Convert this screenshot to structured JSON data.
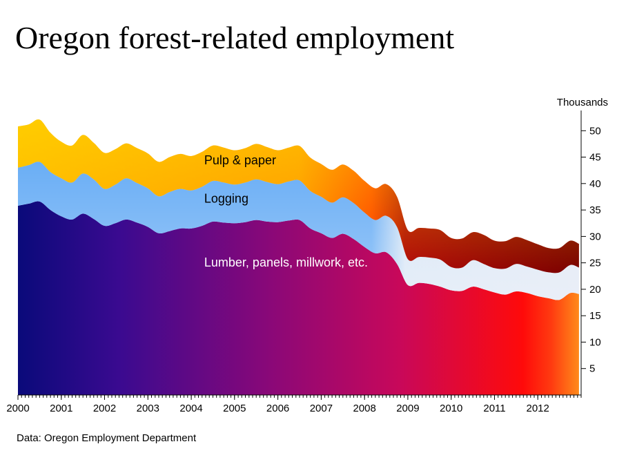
{
  "title": "Oregon forest-related employment",
  "source": "Data:  Oregon Employment Department",
  "chart_data": {
    "type": "area",
    "stacked": true,
    "ylabel": "Thousands",
    "ylim": [
      0,
      52
    ],
    "yticks": [
      5,
      10,
      15,
      20,
      25,
      30,
      35,
      40,
      45,
      50
    ],
    "xticks": [
      "2000",
      "2001",
      "2002",
      "2003",
      "2004",
      "2005",
      "2006",
      "2007",
      "2008",
      "2009",
      "2010",
      "2011",
      "2012"
    ],
    "x_start": 2000.0,
    "x_end": 2013.0,
    "grid": false,
    "y_axis_side": "right",
    "x": [
      2000.0,
      2000.25,
      2000.5,
      2000.75,
      2001.0,
      2001.25,
      2001.5,
      2001.75,
      2002.0,
      2002.25,
      2002.5,
      2002.75,
      2003.0,
      2003.25,
      2003.5,
      2003.75,
      2004.0,
      2004.25,
      2004.5,
      2004.75,
      2005.0,
      2005.25,
      2005.5,
      2005.75,
      2006.0,
      2006.25,
      2006.5,
      2006.75,
      2007.0,
      2007.25,
      2007.5,
      2007.75,
      2008.0,
      2008.25,
      2008.5,
      2008.75,
      2009.0,
      2009.25,
      2009.5,
      2009.75,
      2010.0,
      2010.25,
      2010.5,
      2010.75,
      2011.0,
      2011.25,
      2011.5,
      2011.75,
      2012.0,
      2012.25,
      2012.5,
      2012.75,
      2012.95
    ],
    "series": [
      {
        "name": "Lumber, panels, millwork, etc.",
        "values": [
          35.8,
          36.2,
          36.6,
          35.0,
          33.8,
          33.2,
          34.3,
          33.3,
          32.0,
          32.5,
          33.2,
          32.6,
          31.8,
          30.6,
          31.0,
          31.5,
          31.5,
          32.0,
          32.8,
          32.6,
          32.5,
          32.7,
          33.1,
          32.8,
          32.7,
          33.0,
          33.1,
          31.5,
          30.6,
          29.7,
          30.5,
          29.5,
          28.0,
          26.8,
          27.0,
          24.8,
          20.8,
          21.2,
          21.0,
          20.5,
          19.8,
          19.7,
          20.5,
          20.0,
          19.4,
          19.0,
          19.6,
          19.3,
          18.7,
          18.3,
          18.0,
          19.3,
          19.1
        ]
      },
      {
        "name": "Logging",
        "values": [
          7.2,
          7.3,
          7.5,
          7.2,
          7.2,
          7.0,
          7.6,
          7.5,
          7.0,
          7.3,
          7.8,
          7.5,
          7.3,
          7.0,
          7.4,
          7.5,
          7.2,
          7.4,
          7.7,
          7.6,
          7.3,
          7.5,
          7.7,
          7.5,
          7.2,
          7.4,
          7.5,
          7.1,
          6.9,
          6.7,
          6.9,
          6.8,
          6.5,
          6.3,
          6.9,
          7.0,
          4.9,
          4.9,
          5.0,
          5.1,
          4.4,
          4.4,
          5.0,
          4.8,
          4.6,
          4.9,
          5.2,
          5.0,
          5.0,
          4.9,
          5.2,
          5.3,
          5.0
        ]
      },
      {
        "name": "Pulp & paper",
        "values": [
          7.8,
          7.7,
          8.0,
          7.4,
          6.9,
          7.0,
          7.3,
          6.9,
          6.8,
          6.7,
          6.6,
          6.6,
          6.6,
          6.5,
          6.6,
          6.6,
          6.5,
          6.6,
          6.7,
          6.6,
          6.5,
          6.5,
          6.7,
          6.6,
          6.4,
          6.4,
          6.5,
          6.3,
          6.2,
          6.2,
          6.2,
          6.1,
          6.0,
          6.0,
          6.0,
          5.7,
          5.5,
          5.5,
          5.5,
          5.6,
          5.5,
          5.5,
          5.3,
          5.5,
          5.2,
          5.2,
          5.1,
          5.0,
          4.8,
          4.6,
          4.6,
          4.6,
          4.5
        ]
      }
    ],
    "annotations": [
      {
        "text": "Pulp & paper",
        "x": 2004.3,
        "y": 43.6
      },
      {
        "text": "Logging",
        "x": 2004.3,
        "y": 36.4
      },
      {
        "text": "Lumber, panels, millwork, etc.",
        "x": 2004.3,
        "y": 24.3
      }
    ]
  }
}
